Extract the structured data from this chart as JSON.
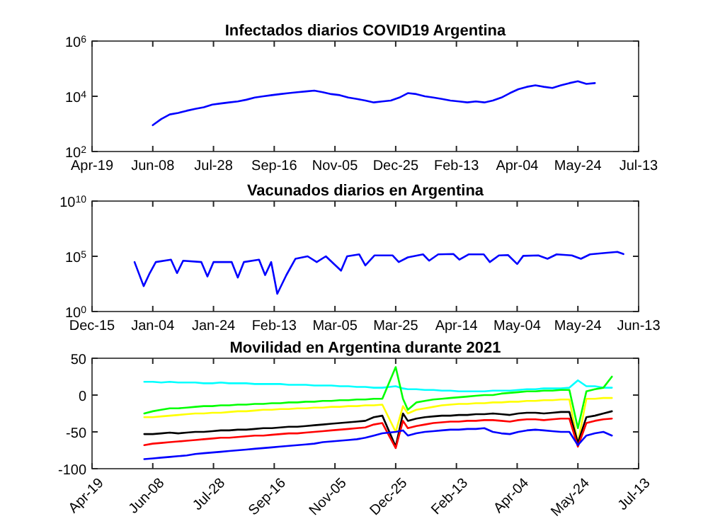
{
  "chart_data": [
    {
      "type": "line",
      "title": "Infectados diarios COVID19 Argentina",
      "log": "y",
      "x": [
        "2020-06-08",
        "2020-06-15",
        "2020-06-22",
        "2020-06-29",
        "2020-07-06",
        "2020-07-13",
        "2020-07-20",
        "2020-07-27",
        "2020-08-03",
        "2020-08-10",
        "2020-08-17",
        "2020-08-24",
        "2020-08-31",
        "2020-09-07",
        "2020-09-14",
        "2020-09-21",
        "2020-09-28",
        "2020-10-05",
        "2020-10-12",
        "2020-10-19",
        "2020-10-26",
        "2020-11-02",
        "2020-11-09",
        "2020-11-16",
        "2020-11-23",
        "2020-11-30",
        "2020-12-07",
        "2020-12-14",
        "2020-12-21",
        "2020-12-28",
        "2021-01-04",
        "2021-01-11",
        "2021-01-18",
        "2021-01-25",
        "2021-02-01",
        "2021-02-08",
        "2021-02-15",
        "2021-02-22",
        "2021-03-01",
        "2021-03-08",
        "2021-03-15",
        "2021-03-22",
        "2021-03-29",
        "2021-04-05",
        "2021-04-12",
        "2021-04-19",
        "2021-04-26",
        "2021-05-03",
        "2021-05-10",
        "2021-05-17",
        "2021-05-24",
        "2021-05-31",
        "2021-06-07"
      ],
      "series": [
        {
          "color": "#0000ff",
          "values": [
            900,
            1500,
            2200,
            2500,
            3000,
            3500,
            4000,
            5000,
            5500,
            6000,
            6500,
            7500,
            9000,
            10000,
            11000,
            12000,
            13000,
            14000,
            15000,
            16000,
            14000,
            12000,
            11000,
            9000,
            8000,
            7000,
            6000,
            6500,
            7000,
            9000,
            13000,
            12000,
            10000,
            9000,
            8000,
            7000,
            6500,
            6000,
            6500,
            6000,
            7000,
            9000,
            13000,
            18000,
            22000,
            25000,
            22000,
            20000,
            25000,
            30000,
            35000,
            28000,
            30000
          ]
        }
      ],
      "xlim": [
        "2020-04-19",
        "2021-07-13"
      ],
      "xticks": [
        {
          "value": "2020-04-19",
          "label": "Apr-19"
        },
        {
          "value": "2020-06-08",
          "label": "Jun-08"
        },
        {
          "value": "2020-07-28",
          "label": "Jul-28"
        },
        {
          "value": "2020-09-16",
          "label": "Sep-16"
        },
        {
          "value": "2020-11-05",
          "label": "Nov-05"
        },
        {
          "value": "2020-12-25",
          "label": "Dec-25"
        },
        {
          "value": "2021-02-13",
          "label": "Feb-13"
        },
        {
          "value": "2021-04-04",
          "label": "Apr-04"
        },
        {
          "value": "2021-05-24",
          "label": "May-24"
        },
        {
          "value": "2021-07-13",
          "label": "Jul-13"
        }
      ],
      "ylim": [
        100,
        1000000
      ],
      "yticks": [
        {
          "value": 100,
          "label": "10$^{2}$"
        },
        {
          "value": 10000,
          "label": "10$^{4}$"
        },
        {
          "value": 1000000,
          "label": "10$^{6}$"
        }
      ]
    },
    {
      "type": "line",
      "title": "Vacunados diarios en Argentina",
      "log": "y",
      "x": [
        "2020-12-29",
        "2021-01-01",
        "2021-01-03",
        "2021-01-05",
        "2021-01-10",
        "2021-01-12",
        "2021-01-14",
        "2021-01-20",
        "2021-01-22",
        "2021-01-24",
        "2021-01-30",
        "2021-02-01",
        "2021-02-03",
        "2021-02-08",
        "2021-02-10",
        "2021-02-12",
        "2021-02-14",
        "2021-02-17",
        "2021-02-20",
        "2021-02-24",
        "2021-02-27",
        "2021-03-02",
        "2021-03-07",
        "2021-03-09",
        "2021-03-13",
        "2021-03-15",
        "2021-03-18",
        "2021-03-24",
        "2021-03-26",
        "2021-03-29",
        "2021-04-03",
        "2021-04-05",
        "2021-04-08",
        "2021-04-13",
        "2021-04-15",
        "2021-04-18",
        "2021-04-23",
        "2021-04-25",
        "2021-04-28",
        "2021-05-01",
        "2021-05-04",
        "2021-05-06",
        "2021-05-11",
        "2021-05-14",
        "2021-05-17",
        "2021-05-22",
        "2021-05-25",
        "2021-05-28",
        "2021-06-02",
        "2021-06-06",
        "2021-06-08"
      ],
      "series": [
        {
          "color": "#0000ff",
          "values": [
            30000,
            200,
            3000,
            30000,
            50000,
            3000,
            40000,
            30000,
            1500,
            30000,
            30000,
            1200,
            30000,
            50000,
            2000,
            30000,
            40,
            2000,
            60000,
            100000,
            30000,
            100000,
            5000,
            100000,
            150000,
            15000,
            120000,
            120000,
            30000,
            80000,
            150000,
            40000,
            150000,
            160000,
            50000,
            150000,
            150000,
            30000,
            120000,
            130000,
            20000,
            110000,
            120000,
            60000,
            150000,
            120000,
            60000,
            150000,
            200000,
            250000,
            160000
          ]
        }
      ],
      "xlim": [
        "2020-12-15",
        "2021-06-13"
      ],
      "xticks": [
        {
          "value": "2020-12-15",
          "label": "Dec-15"
        },
        {
          "value": "2021-01-04",
          "label": "Jan-04"
        },
        {
          "value": "2021-01-24",
          "label": "Jan-24"
        },
        {
          "value": "2021-02-13",
          "label": "Feb-13"
        },
        {
          "value": "2021-03-05",
          "label": "Mar-05"
        },
        {
          "value": "2021-03-25",
          "label": "Mar-25"
        },
        {
          "value": "2021-04-14",
          "label": "Apr-14"
        },
        {
          "value": "2021-05-04",
          "label": "May-04"
        },
        {
          "value": "2021-05-24",
          "label": "May-24"
        },
        {
          "value": "2021-06-13",
          "label": "Jun-13"
        }
      ],
      "ylim": [
        1,
        10000000000
      ],
      "yticks": [
        {
          "value": 1,
          "label": "10$^{0}$"
        },
        {
          "value": 100000,
          "label": "10$^{5}$"
        },
        {
          "value": 10000000000,
          "label": "10$^{10}$"
        }
      ]
    },
    {
      "type": "line",
      "title": "Movilidad en Argentina durante 2021",
      "x": [
        "2020-06-01",
        "2020-06-08",
        "2020-06-15",
        "2020-06-22",
        "2020-06-29",
        "2020-07-06",
        "2020-07-13",
        "2020-07-20",
        "2020-07-27",
        "2020-08-03",
        "2020-08-10",
        "2020-08-17",
        "2020-08-24",
        "2020-08-31",
        "2020-09-07",
        "2020-09-14",
        "2020-09-21",
        "2020-09-28",
        "2020-10-05",
        "2020-10-12",
        "2020-10-19",
        "2020-10-26",
        "2020-11-02",
        "2020-11-09",
        "2020-11-16",
        "2020-11-23",
        "2020-11-30",
        "2020-12-07",
        "2020-12-14",
        "2020-12-25",
        "2020-12-31",
        "2021-01-04",
        "2021-01-11",
        "2021-01-18",
        "2021-01-25",
        "2021-02-01",
        "2021-02-08",
        "2021-02-15",
        "2021-02-22",
        "2021-03-01",
        "2021-03-08",
        "2021-03-15",
        "2021-03-22",
        "2021-03-29",
        "2021-04-05",
        "2021-04-12",
        "2021-04-19",
        "2021-04-26",
        "2021-05-03",
        "2021-05-10",
        "2021-05-17",
        "2021-05-24",
        "2021-05-31",
        "2021-06-07",
        "2021-06-14",
        "2021-06-21"
      ],
      "series": [
        {
          "color": "#00ffff",
          "values": [
            18,
            18,
            17,
            18,
            17,
            17,
            17,
            16,
            16,
            17,
            16,
            16,
            16,
            15,
            15,
            15,
            15,
            14,
            14,
            14,
            13,
            13,
            13,
            12,
            12,
            11,
            11,
            10,
            10,
            12,
            9,
            8,
            8,
            7,
            7,
            6,
            6,
            5,
            5,
            5,
            5,
            6,
            6,
            6,
            7,
            8,
            8,
            9,
            9,
            9,
            10,
            20,
            12,
            12,
            10,
            10
          ]
        },
        {
          "color": "#00ff00",
          "values": [
            -25,
            -22,
            -20,
            -18,
            -18,
            -17,
            -16,
            -15,
            -15,
            -14,
            -14,
            -13,
            -13,
            -12,
            -12,
            -11,
            -11,
            -10,
            -10,
            -9,
            -9,
            -8,
            -8,
            -7,
            -7,
            -6,
            -6,
            -5,
            -5,
            38,
            -5,
            -20,
            -10,
            -8,
            -6,
            -5,
            -4,
            -3,
            -2,
            -1,
            0,
            0,
            2,
            3,
            4,
            5,
            5,
            6,
            6,
            7,
            7,
            -45,
            5,
            8,
            10,
            25
          ]
        },
        {
          "color": "#ffff00",
          "values": [
            -30,
            -30,
            -29,
            -28,
            -27,
            -26,
            -25,
            -25,
            -24,
            -24,
            -23,
            -22,
            -22,
            -21,
            -20,
            -20,
            -19,
            -19,
            -18,
            -18,
            -17,
            -17,
            -16,
            -16,
            -15,
            -15,
            -14,
            -14,
            -13,
            -50,
            -15,
            -25,
            -20,
            -18,
            -16,
            -14,
            -13,
            -12,
            -12,
            -11,
            -11,
            -10,
            -10,
            -9,
            -9,
            -8,
            -8,
            -7,
            -7,
            -6,
            -6,
            -65,
            -5,
            -5,
            -4,
            -4
          ]
        },
        {
          "color": "#000000",
          "values": [
            -53,
            -53,
            -52,
            -51,
            -52,
            -51,
            -50,
            -50,
            -49,
            -48,
            -48,
            -47,
            -47,
            -46,
            -45,
            -45,
            -44,
            -43,
            -43,
            -42,
            -41,
            -40,
            -39,
            -38,
            -37,
            -36,
            -35,
            -30,
            -28,
            -70,
            -25,
            -35,
            -32,
            -30,
            -29,
            -28,
            -28,
            -27,
            -27,
            -26,
            -26,
            -25,
            -26,
            -27,
            -25,
            -24,
            -24,
            -25,
            -24,
            -23,
            -23,
            -65,
            -30,
            -28,
            -25,
            -22
          ]
        },
        {
          "color": "#ff0000",
          "values": [
            -68,
            -66,
            -65,
            -64,
            -63,
            -62,
            -61,
            -60,
            -59,
            -58,
            -58,
            -57,
            -56,
            -55,
            -55,
            -54,
            -53,
            -52,
            -52,
            -51,
            -50,
            -49,
            -48,
            -47,
            -46,
            -45,
            -44,
            -40,
            -38,
            -72,
            -35,
            -45,
            -42,
            -40,
            -38,
            -37,
            -36,
            -36,
            -35,
            -35,
            -34,
            -34,
            -35,
            -36,
            -34,
            -33,
            -33,
            -34,
            -33,
            -32,
            -32,
            -70,
            -38,
            -35,
            -33,
            -32
          ]
        },
        {
          "color": "#0000ff",
          "values": [
            -87,
            -86,
            -85,
            -84,
            -83,
            -82,
            -80,
            -79,
            -78,
            -77,
            -76,
            -75,
            -74,
            -73,
            -72,
            -71,
            -70,
            -69,
            -68,
            -67,
            -66,
            -64,
            -63,
            -62,
            -61,
            -60,
            -58,
            -55,
            -52,
            -50,
            -48,
            -55,
            -52,
            -50,
            -49,
            -48,
            -47,
            -47,
            -46,
            -46,
            -45,
            -50,
            -52,
            -53,
            -50,
            -48,
            -47,
            -48,
            -49,
            -50,
            -50,
            -68,
            -55,
            -52,
            -50,
            -55
          ]
        }
      ],
      "xlim": [
        "2020-04-19",
        "2021-07-13"
      ],
      "xticks": [
        {
          "value": "2020-04-19",
          "label": "Apr-19"
        },
        {
          "value": "2020-06-08",
          "label": "Jun-08"
        },
        {
          "value": "2020-07-28",
          "label": "Jul-28"
        },
        {
          "value": "2020-09-16",
          "label": "Sep-16"
        },
        {
          "value": "2020-11-05",
          "label": "Nov-05"
        },
        {
          "value": "2020-12-25",
          "label": "Dec-25"
        },
        {
          "value": "2021-02-13",
          "label": "Feb-13"
        },
        {
          "value": "2021-04-04",
          "label": "Apr-04"
        },
        {
          "value": "2021-05-24",
          "label": "May-24"
        },
        {
          "value": "2021-07-13",
          "label": "Jul-13"
        }
      ],
      "ylim": [
        -100,
        50
      ],
      "yticks": [
        -100,
        -50,
        0,
        50
      ]
    }
  ]
}
